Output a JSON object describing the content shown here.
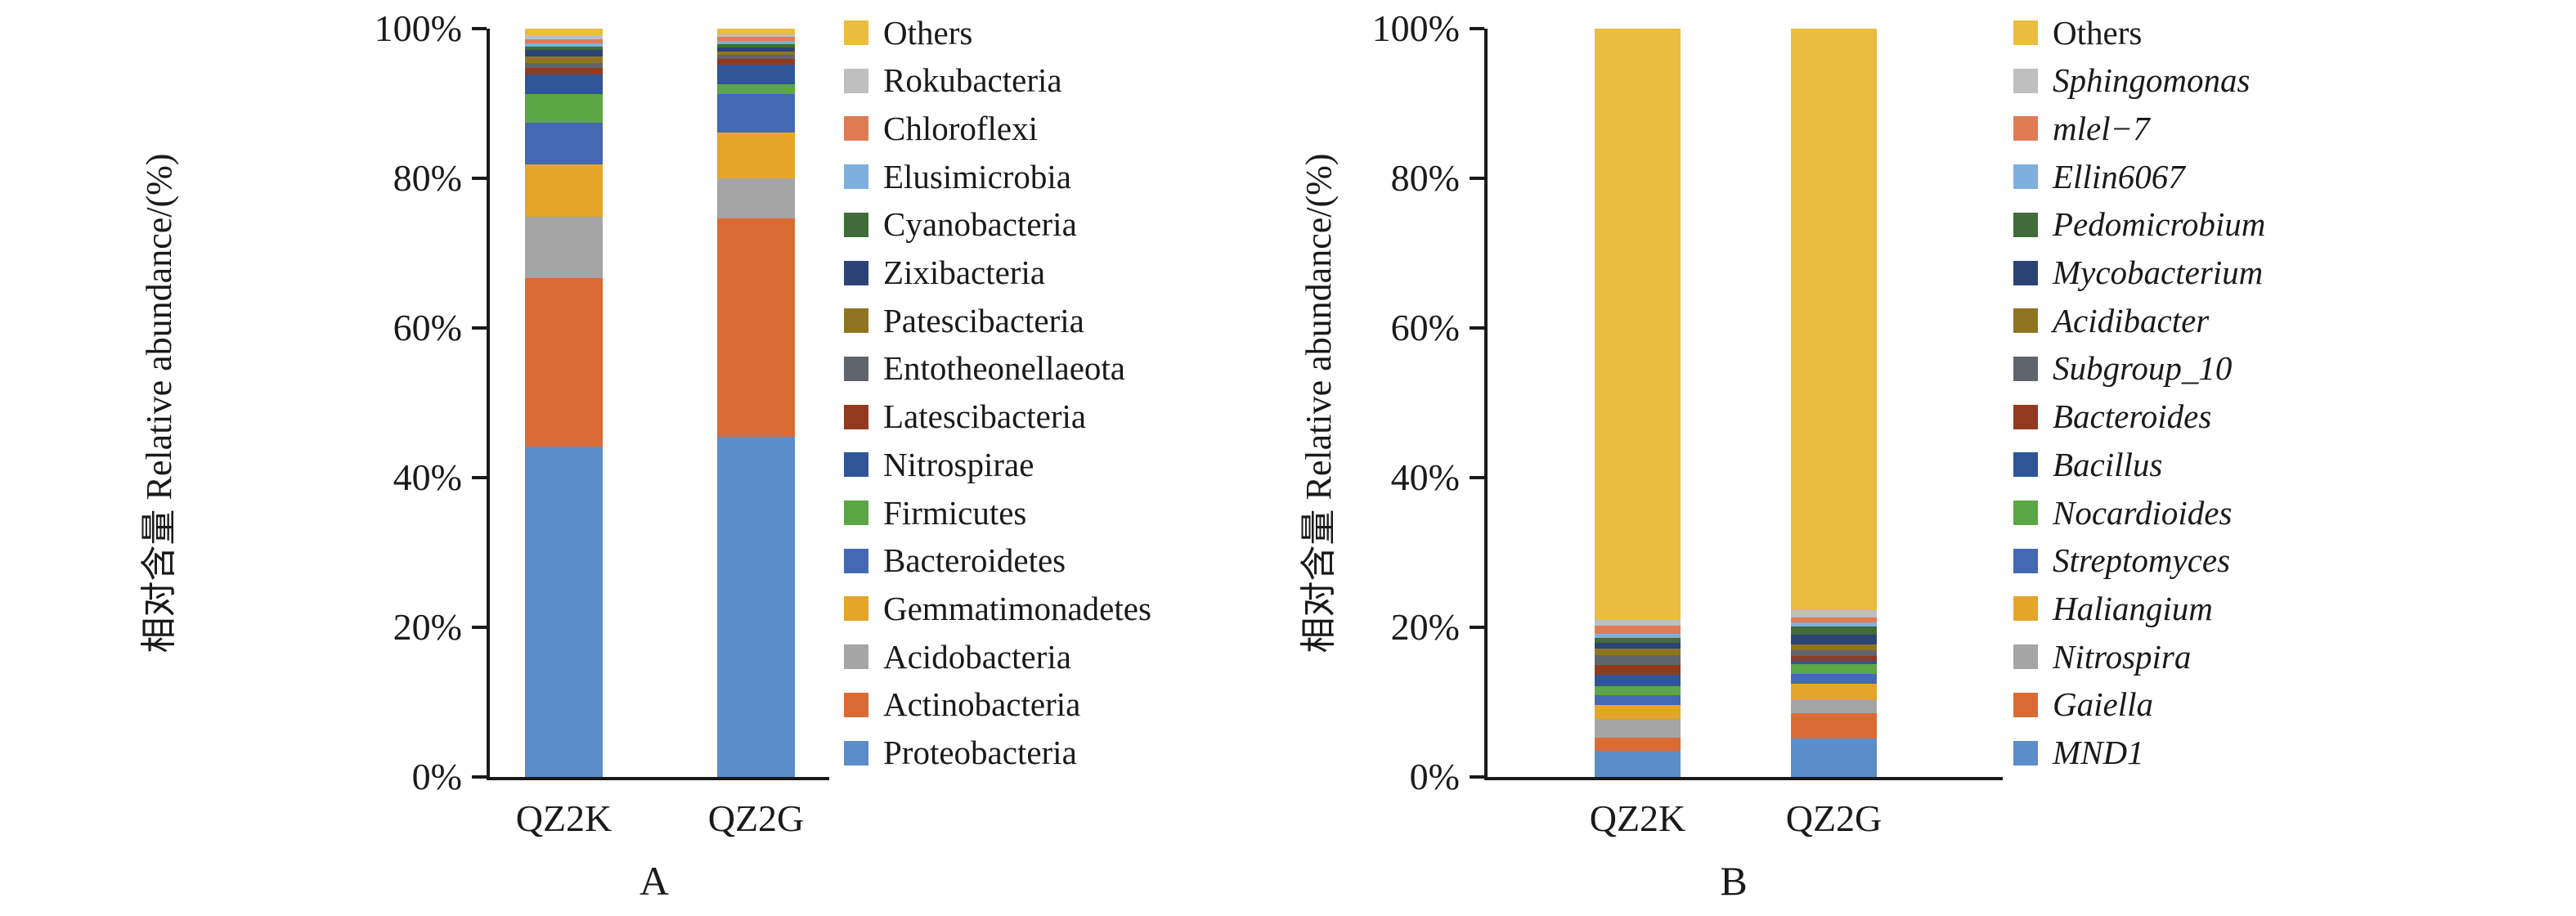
{
  "figure_title": "",
  "chart_data": [
    {
      "type": "bar",
      "stacked": true,
      "panel_label": "A",
      "ylabel": "相对含量 Relative abundance/(%)",
      "ylim": [
        0,
        100
      ],
      "y_tick_labels": [
        "0%",
        "20%",
        "40%",
        "60%",
        "80%",
        "100%"
      ],
      "categories": [
        "QZ2K",
        "QZ2G"
      ],
      "legend_position": "right",
      "grid": false,
      "series": [
        {
          "name": "Others",
          "color": "#EABC3F",
          "italic": false,
          "values": [
            0.9,
            0.75
          ]
        },
        {
          "name": "Rokubacteria",
          "color": "#BFBFBF",
          "italic": false,
          "values": [
            0.5,
            0.35
          ]
        },
        {
          "name": "Chloroflexi",
          "color": "#E07B54",
          "italic": false,
          "values": [
            0.6,
            0.55
          ]
        },
        {
          "name": "Elusimicrobia",
          "color": "#7EB0DE",
          "italic": false,
          "values": [
            0.35,
            0.4
          ]
        },
        {
          "name": "Cyanobacteria",
          "color": "#3F6C39",
          "italic": false,
          "values": [
            0.5,
            0.5
          ]
        },
        {
          "name": "Zixibacteria",
          "color": "#2C4475",
          "italic": false,
          "values": [
            0.85,
            0.5
          ]
        },
        {
          "name": "Patescibacteria",
          "color": "#8F7522",
          "italic": false,
          "values": [
            0.85,
            0.45
          ]
        },
        {
          "name": "Entotheonellaeota",
          "color": "#60656D",
          "italic": false,
          "values": [
            0.7,
            0.55
          ]
        },
        {
          "name": "Latescibacteria",
          "color": "#93391E",
          "italic": false,
          "values": [
            0.9,
            0.8
          ]
        },
        {
          "name": "Nitrospirae",
          "color": "#2F5597",
          "italic": false,
          "values": [
            2.6,
            2.6
          ]
        },
        {
          "name": "Firmicutes",
          "color": "#5BA645",
          "italic": false,
          "values": [
            3.9,
            1.3
          ]
        },
        {
          "name": "Bacteroidetes",
          "color": "#4568B2",
          "italic": false,
          "values": [
            5.5,
            5.2
          ]
        },
        {
          "name": "Gemmatimonadetes",
          "color": "#E4A528",
          "italic": false,
          "values": [
            7.1,
            6.2
          ]
        },
        {
          "name": "Acidobacteria",
          "color": "#A5A5A5",
          "italic": false,
          "values": [
            8.2,
            5.3
          ]
        },
        {
          "name": "Actinobacteria",
          "color": "#DB6B35",
          "italic": false,
          "values": [
            22.6,
            29.4
          ]
        },
        {
          "name": "Proteobacteria",
          "color": "#5B8DC8",
          "italic": false,
          "values": [
            44.3,
            45.7
          ]
        }
      ]
    },
    {
      "type": "bar",
      "stacked": true,
      "panel_label": "B",
      "ylabel": "相对含量 Relative abundance/(%)",
      "ylim": [
        0,
        100
      ],
      "y_tick_labels": [
        "0%",
        "20%",
        "40%",
        "60%",
        "80%",
        "100%"
      ],
      "categories": [
        "QZ2K",
        "QZ2G"
      ],
      "legend_position": "right",
      "grid": false,
      "series": [
        {
          "name": "Others",
          "color": "#EABC3F",
          "italic": false,
          "values": [
            79.0,
            77.8
          ]
        },
        {
          "name": "Sphingomonas",
          "color": "#BFBFBF",
          "italic": true,
          "values": [
            0.9,
            1.0
          ]
        },
        {
          "name": "mlel−7",
          "color": "#E07B54",
          "italic": true,
          "values": [
            1.1,
            0.65
          ]
        },
        {
          "name": "Ellin6067",
          "color": "#7EB0DE",
          "italic": true,
          "values": [
            0.5,
            0.55
          ]
        },
        {
          "name": "Pedomicrobium",
          "color": "#3F6C39",
          "italic": true,
          "values": [
            0.65,
            1.1
          ]
        },
        {
          "name": "Mycobacterium",
          "color": "#2C4475",
          "italic": true,
          "values": [
            0.75,
            1.35
          ]
        },
        {
          "name": "Acidibacter",
          "color": "#8F7522",
          "italic": true,
          "values": [
            0.9,
            0.75
          ]
        },
        {
          "name": "Subgroup_10",
          "color": "#60656D",
          "italic": true,
          "values": [
            1.3,
            0.7
          ]
        },
        {
          "name": "Bacteroides",
          "color": "#93391E",
          "italic": true,
          "values": [
            1.3,
            0.7
          ]
        },
        {
          "name": "Bacillus",
          "color": "#2F5597",
          "italic": true,
          "values": [
            1.6,
            0.45
          ]
        },
        {
          "name": "Nocardioides",
          "color": "#5BA645",
          "italic": true,
          "values": [
            1.2,
            1.3
          ]
        },
        {
          "name": "Streptomyces",
          "color": "#4568B2",
          "italic": true,
          "values": [
            1.3,
            1.3
          ]
        },
        {
          "name": "Haliangium",
          "color": "#E4A528",
          "italic": true,
          "values": [
            1.8,
            2.2
          ]
        },
        {
          "name": "Nitrospira",
          "color": "#A5A5A5",
          "italic": true,
          "values": [
            2.6,
            1.8
          ]
        },
        {
          "name": "Gaiella",
          "color": "#DB6B35",
          "italic": true,
          "values": [
            1.7,
            3.4
          ]
        },
        {
          "name": "MND1",
          "color": "#5B8DC8",
          "italic": true,
          "values": [
            3.5,
            5.1
          ]
        }
      ]
    }
  ]
}
